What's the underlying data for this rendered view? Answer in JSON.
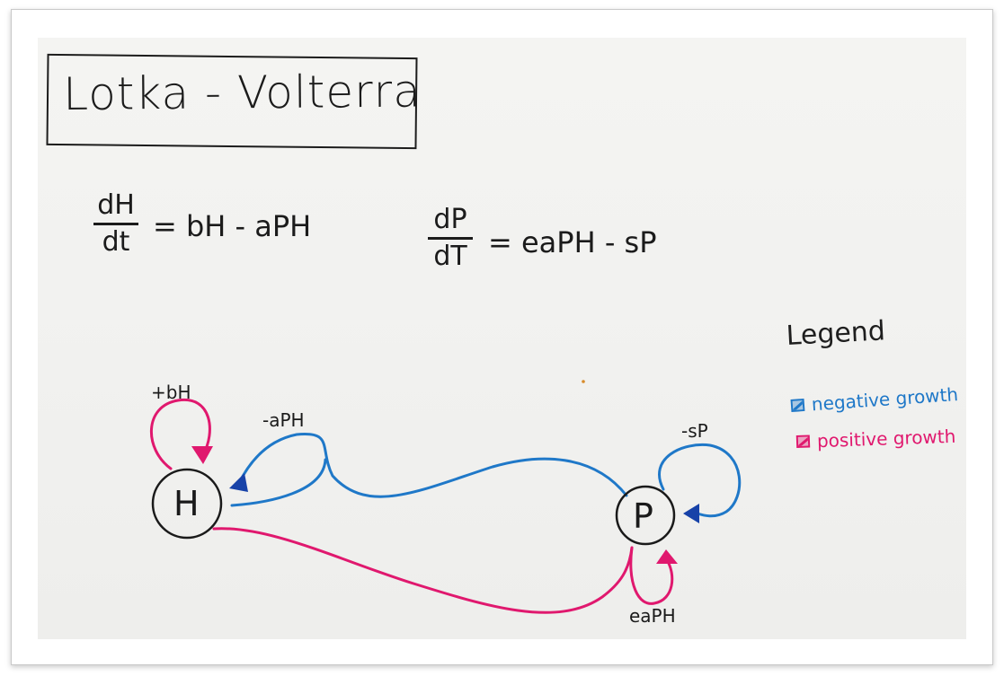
{
  "title": "Lotka - Volterra",
  "equations": {
    "herbivore": {
      "numerator": "dH",
      "denominator": "dt",
      "rhs": "= bH - aPH"
    },
    "predator": {
      "numerator": "dP",
      "denominator": "dT",
      "rhs": "= eaPH - sP"
    }
  },
  "legend": {
    "title": "Legend",
    "items": [
      {
        "label": "negative growth",
        "color": "#1f78c8"
      },
      {
        "label": "positive growth",
        "color": "#e0186e"
      }
    ]
  },
  "nodes": {
    "herbivore": "H",
    "predator": "P"
  },
  "edges": {
    "herbivore_self": "+bH",
    "predation_on_herbivore": "-aPH",
    "predator_self": "-sP",
    "predator_gain": "eaPH"
  },
  "colors": {
    "negative": "#1f78c8",
    "positive": "#e0186e",
    "arrowhead_negative": "#1742a8",
    "arrowhead_positive": "#e0186e",
    "ink": "#1b1b1b"
  }
}
